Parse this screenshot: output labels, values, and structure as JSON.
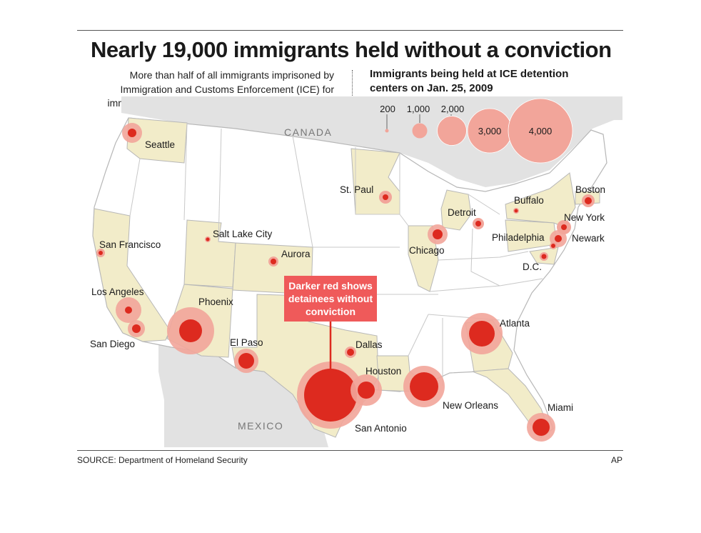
{
  "title": "Nearly 19,000 immigrants held without a conviction",
  "intro": "More than half of all immigrants imprisoned by Immigration and Customs Enforcement (ICE) for immigration violations have not been convicted of a crime.",
  "legend": {
    "title": "Immigrants being held at ICE detention centers on Jan. 25, 2009",
    "sizes": [
      "200",
      "1,000",
      "2,000",
      "3,000",
      "4,000"
    ]
  },
  "callout": "Darker red shows detainees without conviction",
  "countries": {
    "canada": "CANADA",
    "mexico": "MEXICO"
  },
  "source": "SOURCE: Department of Homeland Security",
  "credit": "AP",
  "colors": {
    "total_circle": "#f2a59a",
    "no_conviction_circle": "#dd2a1f",
    "highlight_state": "#f2ecc9",
    "land": "#ffffff",
    "neighbor_land": "#e2e2e2",
    "water": "#ffffff"
  },
  "cities": [
    {
      "name": "Seattle"
    },
    {
      "name": "San Francisco"
    },
    {
      "name": "Los Angeles"
    },
    {
      "name": "San Diego"
    },
    {
      "name": "Phoenix"
    },
    {
      "name": "El Paso"
    },
    {
      "name": "Salt Lake City"
    },
    {
      "name": "Aurora"
    },
    {
      "name": "St. Paul"
    },
    {
      "name": "Chicago"
    },
    {
      "name": "Detroit"
    },
    {
      "name": "Buffalo"
    },
    {
      "name": "Boston"
    },
    {
      "name": "New York"
    },
    {
      "name": "Newark"
    },
    {
      "name": "Philadelphia"
    },
    {
      "name": "D.C."
    },
    {
      "name": "Dallas"
    },
    {
      "name": "Houston"
    },
    {
      "name": "San Antonio"
    },
    {
      "name": "New Orleans"
    },
    {
      "name": "Atlanta"
    },
    {
      "name": "Miami"
    }
  ]
}
